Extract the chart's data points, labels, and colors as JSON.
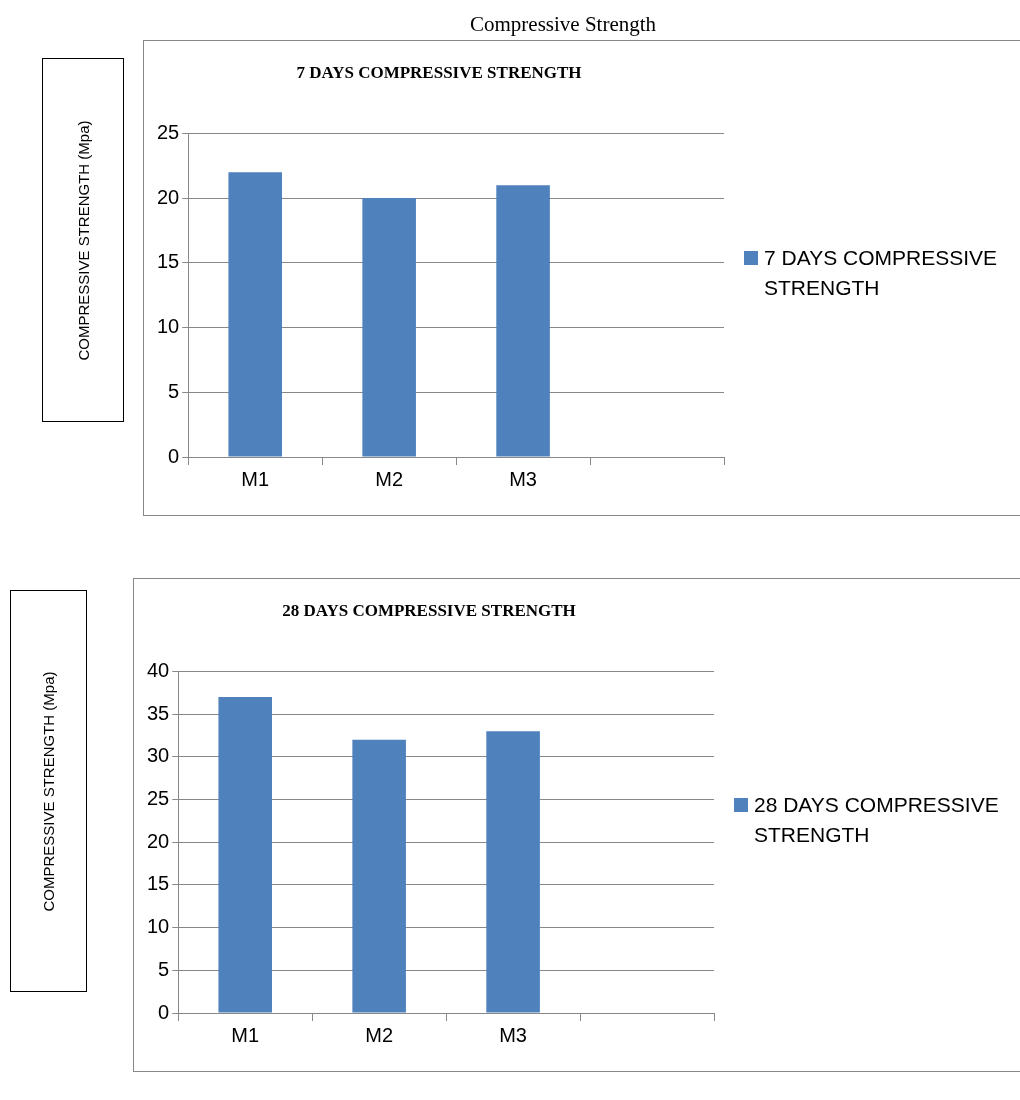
{
  "chart_data": [
    {
      "type": "bar",
      "title": "7 DAYS COMPRESSIVE STRENGTH",
      "ylabel": "COMPRESSIVE STRENGTH  (Mpa)",
      "annotations": [
        "Compressive Strength"
      ],
      "categories": [
        "M1",
        "M2",
        "M3",
        null
      ],
      "series": [
        {
          "name": "7 DAYS COMPRESSIVE STRENGTH",
          "color": "#4f81bd",
          "values": [
            22,
            20,
            21,
            null
          ]
        }
      ],
      "ylim": [
        0,
        25
      ],
      "yticks": [
        0,
        5,
        10,
        15,
        20,
        25
      ],
      "grid": "y",
      "legend": "right"
    },
    {
      "type": "bar",
      "title": "28 DAYS COMPRESSIVE STRENGTH",
      "ylabel": "COMPRESSIVE STRENGTH (Mpa)",
      "categories": [
        "M1",
        "M2",
        "M3",
        null
      ],
      "series": [
        {
          "name": "28 DAYS COMPRESSIVE STRENGTH",
          "color": "#4f81bd",
          "values": [
            37,
            32,
            33,
            null
          ]
        }
      ],
      "ylim": [
        0,
        40
      ],
      "yticks": [
        0,
        5,
        10,
        15,
        20,
        25,
        30,
        35,
        40
      ],
      "grid": "y",
      "legend": "right"
    }
  ]
}
